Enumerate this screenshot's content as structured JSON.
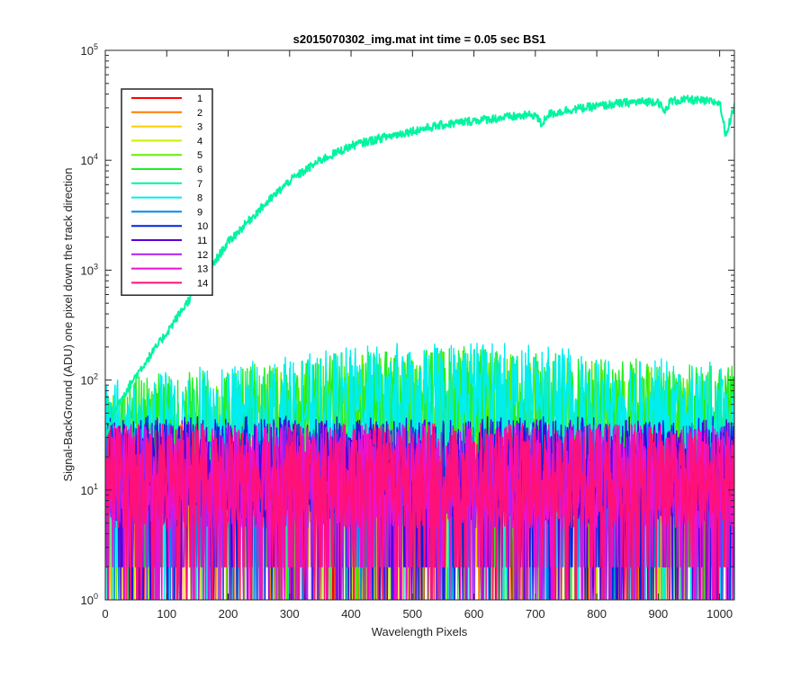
{
  "chart_data": {
    "type": "line",
    "title": "s2015070302_img.mat int time = 0.05 sec   BS1",
    "xlabel": "Wavelength Pixels",
    "ylabel": "Signal-BackGround (ADU) one pixel down the track direction",
    "xlim": [
      0,
      1024
    ],
    "ylim": [
      1,
      100000
    ],
    "yscale": "log",
    "grid": false,
    "legend_position": "top-left",
    "x_ticks": [
      0,
      100,
      200,
      300,
      400,
      500,
      600,
      700,
      800,
      900,
      1000
    ],
    "x_tick_labels": [
      "0",
      "100",
      "200",
      "300",
      "400",
      "500",
      "600",
      "700",
      "800",
      "900",
      "1000"
    ],
    "y_ticks": [
      1,
      10,
      100,
      1000,
      10000,
      100000
    ],
    "y_tick_labels": [
      {
        "base": "10",
        "exp": "0"
      },
      {
        "base": "10",
        "exp": "1"
      },
      {
        "base": "10",
        "exp": "2"
      },
      {
        "base": "10",
        "exp": "3"
      },
      {
        "base": "10",
        "exp": "4"
      },
      {
        "base": "10",
        "exp": "5"
      }
    ],
    "series": [
      {
        "name": "1",
        "color": "#ff0000",
        "kind": "noise",
        "x": [
          0,
          100,
          200,
          300,
          400,
          500,
          600,
          700,
          800,
          900,
          1024
        ],
        "y": [
          12,
          12,
          12,
          12,
          12,
          12,
          12,
          12,
          12,
          12,
          12
        ]
      },
      {
        "name": "2",
        "color": "#ff7a00",
        "kind": "noise",
        "x": [
          0,
          100,
          200,
          300,
          400,
          500,
          600,
          700,
          800,
          900,
          1024
        ],
        "y": [
          12,
          12,
          12,
          12,
          12,
          12,
          12,
          12,
          12,
          12,
          12
        ]
      },
      {
        "name": "3",
        "color": "#ffcc00",
        "kind": "noise",
        "x": [
          0,
          100,
          200,
          300,
          400,
          500,
          600,
          700,
          800,
          900,
          1024
        ],
        "y": [
          12,
          12,
          12,
          12,
          12,
          12,
          12,
          12,
          12,
          12,
          12
        ]
      },
      {
        "name": "4",
        "color": "#ccee00",
        "kind": "noise",
        "x": [
          0,
          100,
          200,
          300,
          400,
          500,
          600,
          700,
          800,
          900,
          1024
        ],
        "y": [
          12,
          12,
          12,
          12,
          12,
          12,
          12,
          12,
          12,
          12,
          12
        ]
      },
      {
        "name": "5",
        "color": "#66ee00",
        "kind": "noise",
        "x": [
          0,
          100,
          200,
          300,
          400,
          500,
          600,
          700,
          800,
          900,
          1024
        ],
        "y": [
          25,
          30,
          35,
          40,
          50,
          55,
          55,
          50,
          45,
          40,
          35
        ]
      },
      {
        "name": "6",
        "color": "#22ee22",
        "kind": "noise",
        "x": [
          0,
          100,
          200,
          300,
          400,
          500,
          600,
          700,
          800,
          900,
          1024
        ],
        "y": [
          30,
          35,
          40,
          45,
          55,
          60,
          60,
          55,
          50,
          45,
          40
        ]
      },
      {
        "name": "7",
        "color": "#00f5a0",
        "kind": "signal",
        "x": [
          0,
          20,
          50,
          100,
          150,
          200,
          250,
          300,
          350,
          400,
          450,
          500,
          550,
          600,
          650,
          700,
          710,
          720,
          750,
          800,
          850,
          900,
          910,
          920,
          950,
          1000,
          1010,
          1024
        ],
        "y": [
          30,
          60,
          110,
          270,
          700,
          1800,
          3500,
          6500,
          10000,
          13500,
          16000,
          18500,
          21000,
          23000,
          24500,
          26000,
          21000,
          26000,
          28500,
          31000,
          33500,
          34500,
          27000,
          34500,
          35500,
          33500,
          17000,
          31000
        ]
      },
      {
        "name": "8",
        "color": "#00eeee",
        "kind": "noise",
        "x": [
          0,
          100,
          200,
          300,
          400,
          500,
          600,
          700,
          800,
          900,
          1024
        ],
        "y": [
          30,
          36,
          42,
          50,
          60,
          68,
          70,
          62,
          55,
          48,
          42
        ]
      },
      {
        "name": "9",
        "color": "#0088ee",
        "kind": "noise",
        "x": [
          0,
          100,
          200,
          300,
          400,
          500,
          600,
          700,
          800,
          900,
          1024
        ],
        "y": [
          12,
          12,
          12,
          12,
          12,
          12,
          12,
          12,
          12,
          12,
          12
        ]
      },
      {
        "name": "10",
        "color": "#0022dd",
        "kind": "noise",
        "x": [
          0,
          100,
          200,
          300,
          400,
          500,
          600,
          700,
          800,
          900,
          1024
        ],
        "y": [
          14,
          14,
          14,
          14,
          14,
          14,
          14,
          14,
          14,
          14,
          14
        ]
      },
      {
        "name": "11",
        "color": "#5500dd",
        "kind": "noise",
        "x": [
          0,
          100,
          200,
          300,
          400,
          500,
          600,
          700,
          800,
          900,
          1024
        ],
        "y": [
          13,
          13,
          13,
          13,
          13,
          13,
          13,
          13,
          13,
          13,
          13
        ]
      },
      {
        "name": "12",
        "color": "#aa22ee",
        "kind": "noise",
        "x": [
          0,
          100,
          200,
          300,
          400,
          500,
          600,
          700,
          800,
          900,
          1024
        ],
        "y": [
          12,
          12,
          12,
          12,
          12,
          12,
          12,
          12,
          12,
          12,
          12
        ]
      },
      {
        "name": "13",
        "color": "#ee11cc",
        "kind": "noise",
        "x": [
          0,
          100,
          200,
          300,
          400,
          500,
          600,
          700,
          800,
          900,
          1024
        ],
        "y": [
          12,
          12,
          12,
          12,
          12,
          12,
          12,
          12,
          12,
          12,
          12
        ]
      },
      {
        "name": "14",
        "color": "#ff1177",
        "kind": "noise",
        "x": [
          0,
          100,
          200,
          300,
          400,
          500,
          600,
          700,
          800,
          900,
          1024
        ],
        "y": [
          12,
          12,
          12,
          12,
          12,
          12,
          12,
          12,
          12,
          12,
          12
        ]
      }
    ]
  }
}
